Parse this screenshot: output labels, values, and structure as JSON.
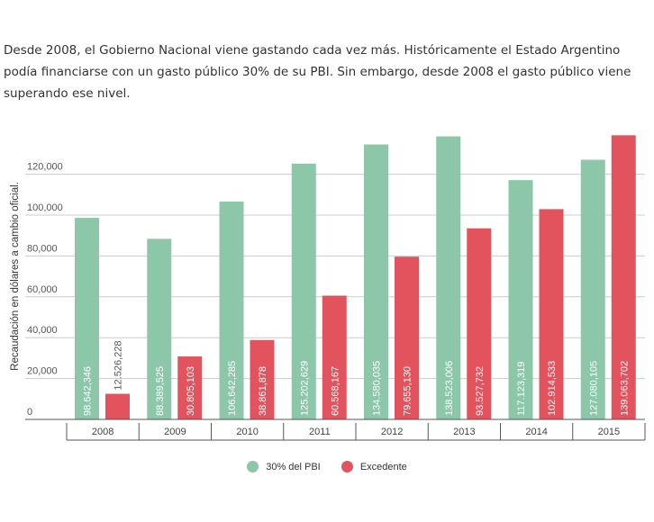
{
  "intro": "Desde 2008, el Gobierno Nacional viene gastando cada vez más. Históricamente el Estado Argentino podía financiarse con un gasto público 30% de su PBI. Sin embargo, desde 2008 el gasto público viene superando ese nivel.",
  "colors": {
    "pbi": "#8cc7aa",
    "excedente": "#e2535d",
    "grid": "#cccccc",
    "axis": "#555555"
  },
  "chart_data": {
    "type": "bar",
    "title": "",
    "xlabel": "",
    "ylabel": "Recaudación en dólares a cambio oficial.",
    "ylim": [
      0,
      140000
    ],
    "yticks": [
      0,
      20000,
      40000,
      60000,
      80000,
      100000,
      120000
    ],
    "ytick_labels": [
      "0",
      "20,000",
      "40,000",
      "60,000",
      "80,000",
      "100,000",
      "120,000"
    ],
    "categories": [
      "2008",
      "2009",
      "2010",
      "2011",
      "2012",
      "2013",
      "2014",
      "2015"
    ],
    "series": [
      {
        "name": "30% del PBI",
        "values": [
          98642.346,
          88389.525,
          106642.285,
          125202.629,
          134580.035,
          138523.006,
          117123.319,
          127080.105
        ],
        "labels": [
          "98.642,346",
          "88.389,525",
          "106.642,285",
          "125.202,629",
          "134.580,035",
          "138.523,006",
          "117.123,319",
          "127.080,105"
        ]
      },
      {
        "name": "Excedente",
        "values": [
          12526.228,
          30805.103,
          38861.878,
          60568.167,
          79655.13,
          93527.732,
          102914.533,
          139063.702
        ],
        "labels": [
          "12.526,228",
          "30.805,103",
          "38.861,878",
          "60.568,167",
          "79.655,130",
          "93.527,732",
          "102.914,533",
          "139.063,702"
        ]
      }
    ],
    "legend_position": "bottom"
  }
}
